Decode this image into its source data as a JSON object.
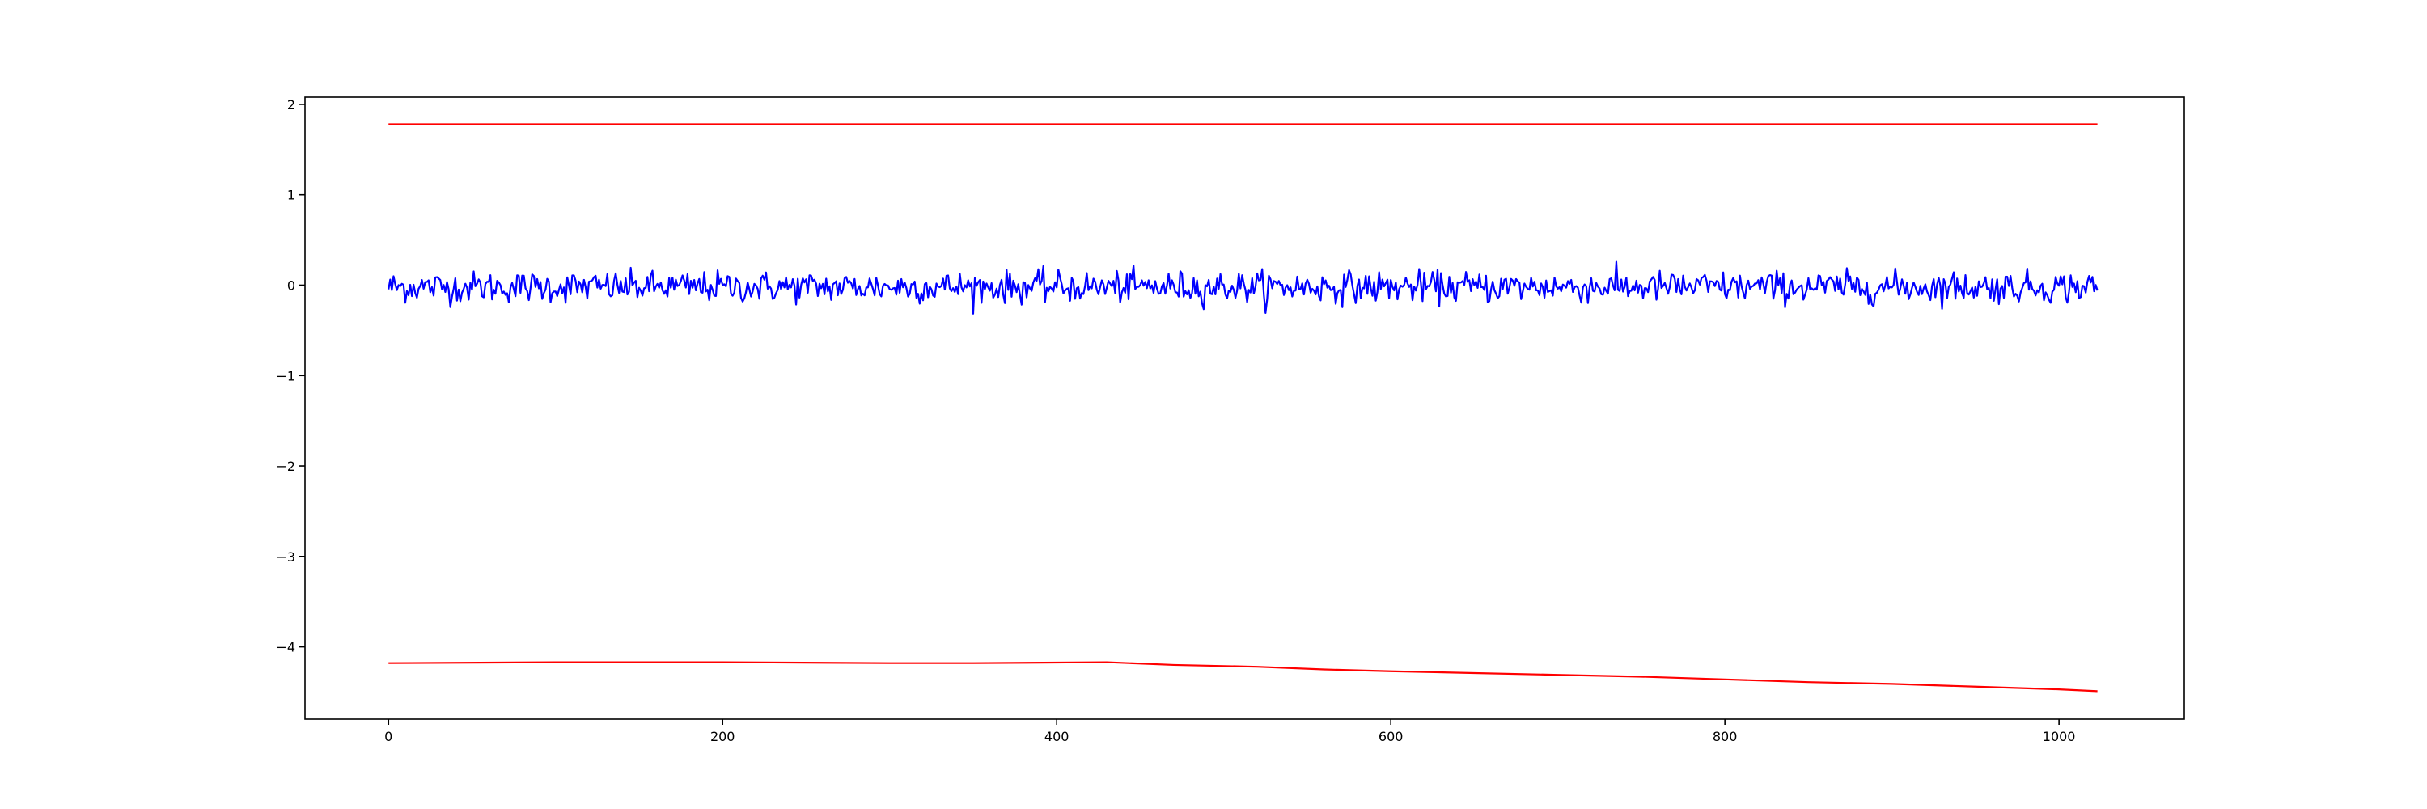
{
  "chart_data": {
    "type": "line",
    "title": "",
    "xlabel": "",
    "ylabel": "",
    "xlim": [
      -50,
      1075
    ],
    "ylim": [
      -4.8,
      2.08
    ],
    "grid": false,
    "legend": "none",
    "x_ticks": [
      {
        "value": 0,
        "label": "0"
      },
      {
        "value": 200,
        "label": "200"
      },
      {
        "value": 400,
        "label": "400"
      },
      {
        "value": 600,
        "label": "600"
      },
      {
        "value": 800,
        "label": "800"
      },
      {
        "value": 1000,
        "label": "1000"
      }
    ],
    "y_ticks": [
      {
        "value": 2,
        "label": "2"
      },
      {
        "value": 1,
        "label": "1"
      },
      {
        "value": 0,
        "label": "0"
      },
      {
        "value": -1,
        "label": "−1"
      },
      {
        "value": -2,
        "label": "−2"
      },
      {
        "value": -3,
        "label": "−3"
      },
      {
        "value": -4,
        "label": "−4"
      }
    ],
    "series": [
      {
        "color": "#ff0000",
        "kind": "line",
        "x": [
          0,
          1023
        ],
        "y": [
          1.78,
          1.78
        ]
      },
      {
        "color": "#0000ff",
        "kind": "noise",
        "x_start": 0,
        "x_end": 1023,
        "points": 1024,
        "y_mean": -0.02,
        "y_min": -0.41,
        "y_max": 0.26
      },
      {
        "color": "#ff0000",
        "kind": "line",
        "x": [
          0,
          100,
          200,
          300,
          350,
          430,
          470,
          520,
          560,
          600,
          650,
          700,
          750,
          800,
          850,
          900,
          950,
          1000,
          1023
        ],
        "y": [
          -4.18,
          -4.17,
          -4.17,
          -4.18,
          -4.18,
          -4.17,
          -4.2,
          -4.22,
          -4.25,
          -4.27,
          -4.29,
          -4.31,
          -4.33,
          -4.36,
          -4.39,
          -4.41,
          -4.44,
          -4.47,
          -4.49
        ]
      }
    ]
  }
}
